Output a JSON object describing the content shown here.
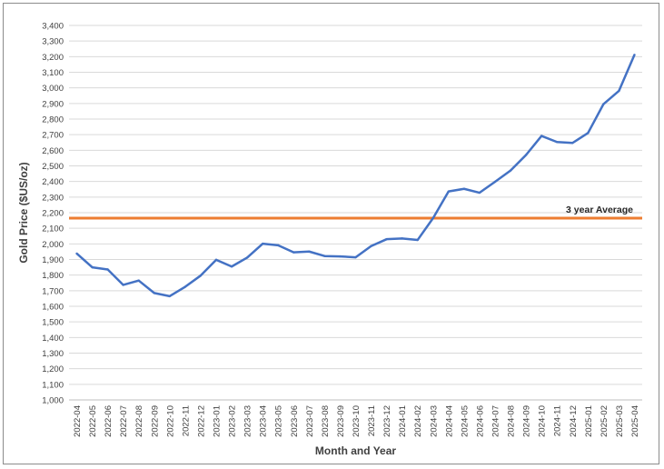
{
  "chart_data": {
    "type": "line",
    "title": "",
    "xlabel": "Month and Year",
    "ylabel": "Gold Price ($US/oz)",
    "ylim": [
      1000,
      3400
    ],
    "ytick_step": 100,
    "grid": "horizontal",
    "categories": [
      "2022-04",
      "2022-05",
      "2022-06",
      "2022-07",
      "2022-08",
      "2022-09",
      "2022-10",
      "2022-11",
      "2022-12",
      "2023-01",
      "2023-02",
      "2023-03",
      "2023-04",
      "2023-05",
      "2023-06",
      "2023-07",
      "2023-08",
      "2023-09",
      "2023-10",
      "2023-11",
      "2023-12",
      "2024-01",
      "2024-02",
      "2024-03",
      "2024-04",
      "2024-05",
      "2024-06",
      "2024-07",
      "2024-08",
      "2024-09",
      "2024-10",
      "2024-11",
      "2024-12",
      "2025-01",
      "2025-02",
      "2025-03",
      "2025-04"
    ],
    "series": [
      {
        "values": [
          1938,
          1850,
          1836,
          1737,
          1765,
          1685,
          1665,
          1725,
          1797,
          1898,
          1855,
          1912,
          2001,
          1991,
          1946,
          1951,
          1922,
          1920,
          1914,
          1986,
          2030,
          2035,
          2025,
          2165,
          2336,
          2353,
          2328,
          2398,
          2470,
          2570,
          2692,
          2653,
          2647,
          2711,
          2896,
          2981,
          3212
        ],
        "color": "#4472c4"
      }
    ],
    "reference_line": {
      "value": 2165,
      "label": "3 year Average",
      "color": "#ed7d31"
    },
    "gridline_color": "#d9d9d9"
  }
}
